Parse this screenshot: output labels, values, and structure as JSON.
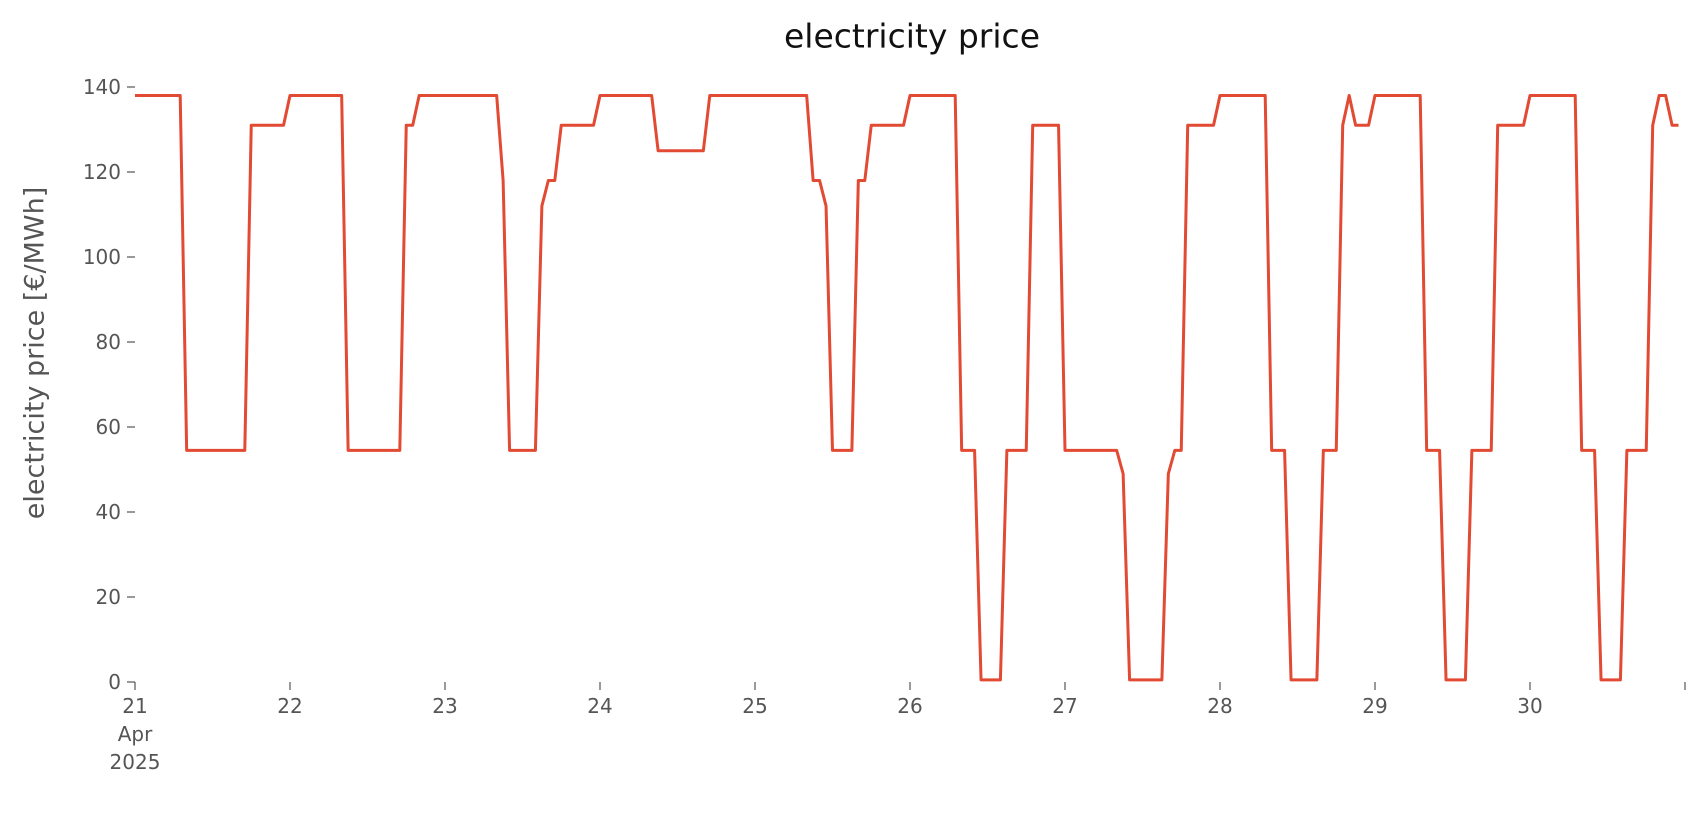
{
  "chart_data": {
    "type": "line",
    "title": "electricity price",
    "y_label": "electricity price [€/MWh]",
    "x": [
      0,
      7,
      8,
      17,
      18,
      23,
      24,
      32,
      33,
      41,
      42,
      43,
      44,
      56,
      57,
      58,
      62,
      63,
      64,
      65,
      66,
      71,
      72,
      80,
      81,
      88,
      89,
      104,
      105,
      106,
      107,
      108,
      111,
      112,
      113,
      114,
      119,
      120,
      127,
      128,
      130,
      131,
      134,
      135,
      138,
      139,
      143,
      144,
      152,
      153,
      154,
      159,
      160,
      161,
      162,
      163,
      167,
      168,
      175,
      176,
      178,
      179,
      183,
      184,
      186,
      187,
      188,
      189,
      191,
      192,
      199,
      200,
      202,
      203,
      206,
      207,
      210,
      211,
      215,
      216,
      223,
      224,
      226,
      227,
      230,
      231,
      234,
      235,
      236,
      237,
      238,
      239
    ],
    "series": [
      {
        "name": "electricity price",
        "color": "#e24a33",
        "values": [
          138,
          138,
          54.5,
          54.5,
          131,
          131,
          138,
          138,
          54.5,
          54.5,
          131,
          131,
          138,
          138,
          118,
          54.5,
          54.5,
          112,
          118,
          118,
          131,
          131,
          138,
          138,
          125,
          125,
          138,
          138,
          118,
          118,
          112,
          54.5,
          54.5,
          118,
          118,
          131,
          131,
          138,
          138,
          54.5,
          54.5,
          0.5,
          0.5,
          54.5,
          54.5,
          131,
          131,
          54.5,
          54.5,
          49,
          0.5,
          0.5,
          49,
          54.5,
          54.5,
          131,
          131,
          138,
          138,
          54.5,
          54.5,
          0.5,
          0.5,
          54.5,
          54.5,
          131,
          138,
          131,
          131,
          138,
          138,
          54.5,
          54.5,
          0.5,
          0.5,
          54.5,
          54.5,
          131,
          131,
          138,
          138,
          54.5,
          54.5,
          0.5,
          0.5,
          54.5,
          54.5,
          131,
          138,
          138,
          131,
          131
        ]
      }
    ],
    "xlim": [
      0,
      240
    ],
    "xticks": [
      {
        "value": 0,
        "label": "21\nApr\n2025"
      },
      {
        "value": 24,
        "label": "22"
      },
      {
        "value": 48,
        "label": "23"
      },
      {
        "value": 72,
        "label": "24"
      },
      {
        "value": 96,
        "label": "25"
      },
      {
        "value": 120,
        "label": "26"
      },
      {
        "value": 144,
        "label": "27"
      },
      {
        "value": 168,
        "label": "28"
      },
      {
        "value": 192,
        "label": "29"
      },
      {
        "value": 216,
        "label": "30"
      },
      {
        "value": 240,
        "label": null
      }
    ],
    "ylim": [
      0,
      140
    ],
    "yticks": [
      0,
      20,
      40,
      60,
      80,
      100,
      120,
      140
    ],
    "grid": false
  }
}
